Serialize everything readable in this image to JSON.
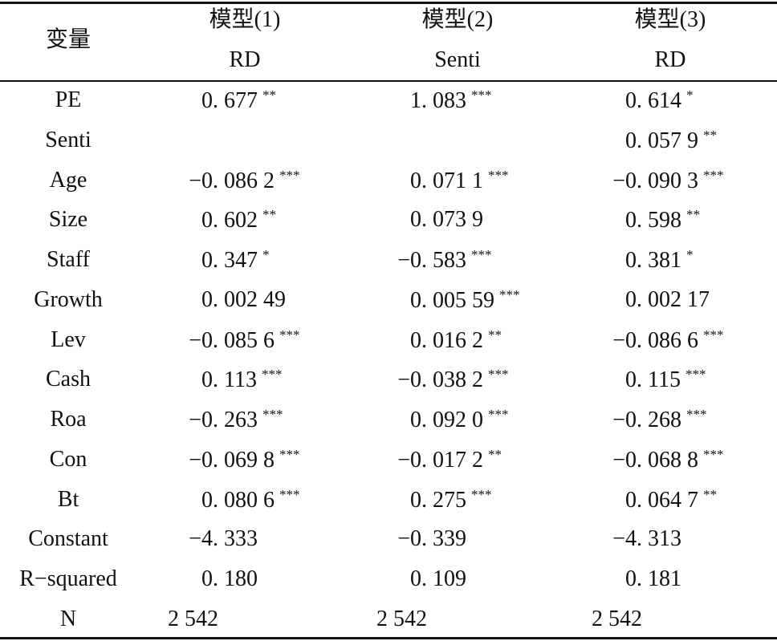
{
  "table": {
    "header": {
      "variable": "变量",
      "models": [
        "模型(1)",
        "模型(2)",
        "模型(3)"
      ],
      "dependents": [
        "RD",
        "Senti",
        "RD"
      ]
    },
    "rows": [
      {
        "label": "PE",
        "cells": [
          {
            "value": "0. 677",
            "stars": "**"
          },
          {
            "value": "1. 083",
            "stars": "***"
          },
          {
            "value": "0. 614",
            "stars": "*"
          }
        ]
      },
      {
        "label": "Senti",
        "cells": [
          null,
          null,
          {
            "value": "0. 057 9",
            "stars": "**"
          }
        ]
      },
      {
        "label": "Age",
        "cells": [
          {
            "value": "−0. 086 2",
            "stars": "***"
          },
          {
            "value": "0. 071 1",
            "stars": "***"
          },
          {
            "value": "−0. 090 3",
            "stars": "***"
          }
        ]
      },
      {
        "label": "Size",
        "cells": [
          {
            "value": "0. 602",
            "stars": "**"
          },
          {
            "value": "0. 073 9"
          },
          {
            "value": "0. 598",
            "stars": "**"
          }
        ]
      },
      {
        "label": "Staff",
        "cells": [
          {
            "value": "0. 347",
            "stars": "*"
          },
          {
            "value": "−0. 583",
            "stars": "***"
          },
          {
            "value": "0. 381",
            "stars": "*"
          }
        ]
      },
      {
        "label": "Growth",
        "cells": [
          {
            "value": "0. 002 49"
          },
          {
            "value": "0. 005 59",
            "stars": "***"
          },
          {
            "value": "0. 002 17"
          }
        ]
      },
      {
        "label": "Lev",
        "cells": [
          {
            "value": "−0. 085 6",
            "stars": "***"
          },
          {
            "value": "0. 016 2",
            "stars": "**"
          },
          {
            "value": "−0. 086 6",
            "stars": "***"
          }
        ]
      },
      {
        "label": "Cash",
        "cells": [
          {
            "value": "0. 113",
            "stars": "***"
          },
          {
            "value": "−0. 038 2",
            "stars": "***"
          },
          {
            "value": "0. 115",
            "stars": "***"
          }
        ]
      },
      {
        "label": "Roa",
        "cells": [
          {
            "value": "−0. 263",
            "stars": "***"
          },
          {
            "value": "0. 092 0",
            "stars": "***"
          },
          {
            "value": "−0. 268",
            "stars": "***"
          }
        ]
      },
      {
        "label": "Con",
        "cells": [
          {
            "value": "−0. 069 8",
            "stars": "***"
          },
          {
            "value": "−0. 017 2",
            "stars": "**"
          },
          {
            "value": "−0. 068 8",
            "stars": "***"
          }
        ]
      },
      {
        "label": "Bt",
        "cells": [
          {
            "value": "0. 080 6",
            "stars": "***"
          },
          {
            "value": "0. 275",
            "stars": "***"
          },
          {
            "value": "0. 064 7",
            "stars": "**"
          }
        ]
      },
      {
        "label": "Constant",
        "cells": [
          {
            "value": "−4. 333"
          },
          {
            "value": "−0. 339"
          },
          {
            "value": "−4. 313"
          }
        ]
      },
      {
        "label": "R−squared",
        "cells": [
          {
            "value": "0. 180"
          },
          {
            "value": "0. 109"
          },
          {
            "value": "0. 181"
          }
        ]
      },
      {
        "label": "N",
        "cells": [
          {
            "value": "2 542"
          },
          {
            "value": "2 542"
          },
          {
            "value": "2 542"
          }
        ]
      }
    ]
  }
}
